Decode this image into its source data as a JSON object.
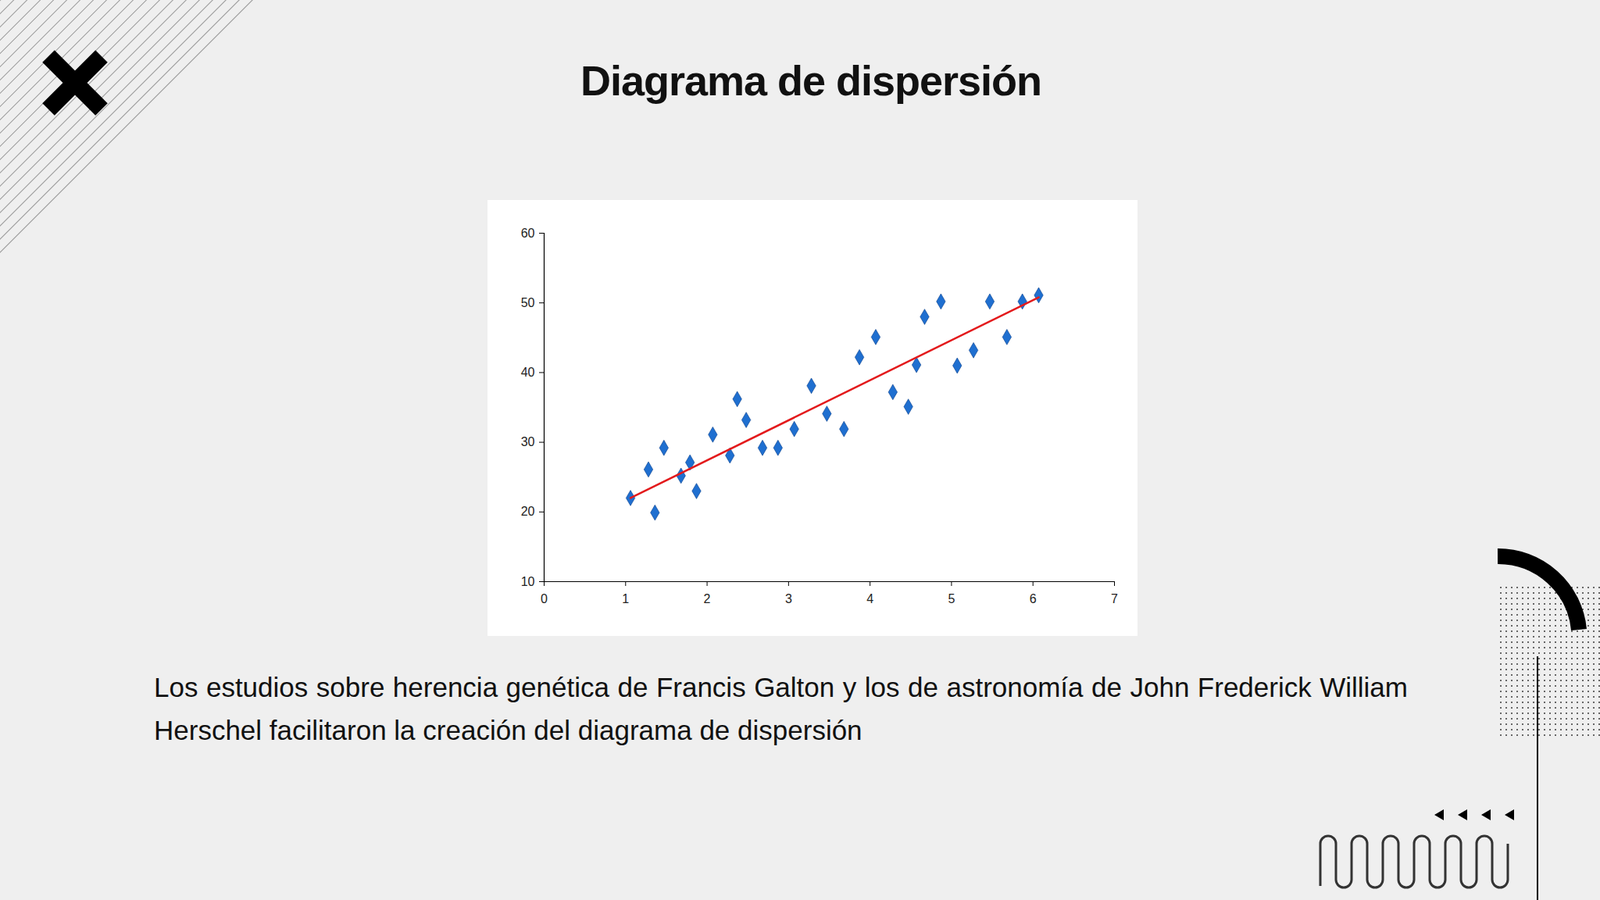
{
  "chart_data": {
    "type": "scatter",
    "title": "Diagrama de dispersión",
    "caption": "Los estudios sobre herencia genética de Francis Galton y los de astronomía de John Frederick William Herschel facilitaron la creación del diagrama de dispersión",
    "x": [
      1.06,
      1.28,
      1.36,
      1.47,
      1.68,
      1.79,
      1.87,
      2.07,
      2.28,
      2.37,
      2.48,
      2.68,
      2.87,
      3.07,
      3.28,
      3.47,
      3.68,
      3.87,
      4.07,
      4.28,
      4.47,
      4.57,
      4.67,
      4.87,
      5.07,
      5.27,
      5.47,
      5.68,
      5.87,
      6.07
    ],
    "values": [
      22.0,
      26.1,
      19.9,
      29.2,
      25.2,
      27.1,
      23.0,
      31.1,
      28.1,
      36.2,
      33.2,
      29.2,
      29.2,
      31.9,
      38.1,
      34.1,
      31.9,
      42.2,
      45.1,
      37.2,
      35.1,
      41.1,
      48.0,
      50.2,
      41.0,
      43.2,
      50.2,
      45.1,
      50.2,
      51.1
    ],
    "color": "#1f6fd0",
    "marker": "diamond",
    "trend_line": {
      "x": [
        1.06,
        6.07
      ],
      "y": [
        22.0,
        50.8
      ],
      "color": "#e31a1c"
    },
    "xlim": [
      0,
      7
    ],
    "xticks": [
      0,
      1,
      2,
      3,
      4,
      5,
      6,
      7
    ],
    "ylim": [
      10,
      60
    ],
    "yticks": [
      10,
      20,
      30,
      40,
      50,
      60
    ],
    "grid": false
  }
}
